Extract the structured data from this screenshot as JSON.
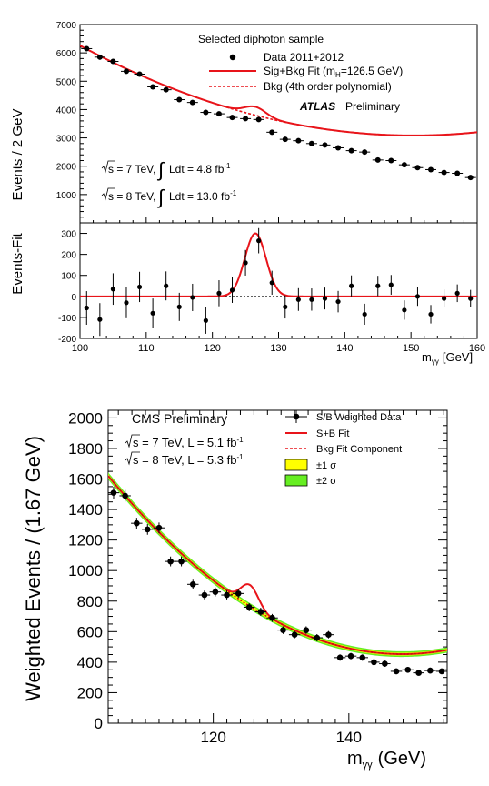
{
  "chart_data": [
    {
      "type": "scatter",
      "experiment": "ATLAS",
      "preliminary_label": "Preliminary",
      "title": "Selected diphoton sample",
      "ylabel": "Events / 2 GeV",
      "ylabel_ratio": "Events-Fit",
      "xlabel": "m",
      "xlabel_sub": "γγ",
      "xlabel_unit": "[GeV]",
      "xlim": [
        100,
        160
      ],
      "ylim": [
        0,
        7000
      ],
      "ratio_ylim": [
        -200,
        350
      ],
      "x_ticks": [
        100,
        110,
        120,
        130,
        140,
        150,
        160
      ],
      "y_ticks": [
        1000,
        2000,
        3000,
        4000,
        5000,
        6000,
        7000
      ],
      "ratio_y_ticks": [
        -200,
        -100,
        0,
        100,
        200,
        300
      ],
      "energy_labels": [
        {
          "prefix": "s = 7 TeV,",
          "integral": "Ldt = 4.8 fb",
          "sup": "-1"
        },
        {
          "prefix": "s = 8 TeV,",
          "integral": "Ldt = 13.0 fb",
          "sup": "-1"
        }
      ],
      "legend": [
        {
          "label": "Data 2011+2012",
          "style": "marker"
        },
        {
          "label": "Sig+Bkg Fit (m",
          "sub": "H",
          "tail": "=126.5 GeV)",
          "style": "solid"
        },
        {
          "label": "Bkg (4th order polynomial)",
          "style": "dashed"
        }
      ],
      "colors": {
        "fit": "#e8141a",
        "data": "#000000"
      },
      "data_x": [
        101,
        103,
        105,
        107,
        109,
        111,
        113,
        115,
        117,
        119,
        121,
        123,
        125,
        127,
        129,
        131,
        133,
        135,
        137,
        139,
        141,
        143,
        145,
        147,
        149,
        151,
        153,
        155,
        157,
        159
      ],
      "data_y": [
        6150,
        5850,
        5700,
        5350,
        5250,
        4800,
        4700,
        4350,
        4250,
        3900,
        3850,
        3720,
        3680,
        3650,
        3200,
        2950,
        2900,
        2800,
        2750,
        2650,
        2550,
        2500,
        2220,
        2200,
        2050,
        1950,
        1880,
        1780,
        1750,
        1600
      ],
      "data_err": [
        80,
        78,
        75,
        74,
        72,
        70,
        69,
        67,
        65,
        63,
        62,
        61,
        61,
        60,
        57,
        55,
        54,
        53,
        52,
        51,
        50,
        50,
        48,
        47,
        46,
        45,
        44,
        43,
        42,
        41
      ],
      "bkg_poly": [
        6260,
        -126,
        1.25
      ],
      "signal": {
        "mass": 126.5,
        "width": 1.6,
        "amplitude": 300
      },
      "residuals": [
        -55,
        -110,
        35,
        -30,
        45,
        -80,
        50,
        -50,
        -5,
        -115,
        15,
        30,
        160,
        265,
        65,
        -50,
        -15,
        -15,
        -10,
        -25,
        50,
        -85,
        50,
        55,
        -65,
        0,
        -85,
        -10,
        15,
        -10
      ],
      "residual_err": [
        80,
        78,
        75,
        74,
        72,
        70,
        69,
        67,
        65,
        63,
        62,
        61,
        61,
        60,
        57,
        55,
        54,
        53,
        52,
        51,
        50,
        50,
        48,
        47,
        46,
        45,
        44,
        43,
        42,
        41
      ]
    },
    {
      "type": "scatter",
      "experiment": "CMS Preliminary",
      "ylabel": "Weighted Events / (1.67 GeV)",
      "xlabel": "m",
      "xlabel_sub": "γγ",
      "xlabel_unit": "(GeV)",
      "xlim": [
        104.5,
        154.5
      ],
      "ylim": [
        0,
        2050
      ],
      "x_ticks": [
        120,
        140
      ],
      "y_ticks": [
        0,
        200,
        400,
        600,
        800,
        1000,
        1200,
        1400,
        1600,
        1800,
        2000
      ],
      "energy_labels": [
        {
          "prefix": "s = 7 TeV, L = 5.1 fb",
          "sup": "-1"
        },
        {
          "prefix": "s = 8 TeV, L = 5.3 fb",
          "sup": "-1"
        }
      ],
      "legend": [
        {
          "label": "S/B Weighted Data",
          "style": "marker"
        },
        {
          "label": "S+B Fit",
          "style": "solid"
        },
        {
          "label": "Bkg Fit Component",
          "style": "dashed"
        },
        {
          "label": "±1 σ",
          "style": "band1"
        },
        {
          "label": "±2 σ",
          "style": "band2"
        }
      ],
      "colors": {
        "fit": "#e8141a",
        "band1": "#ffff00",
        "band2": "#66ee22",
        "data": "#000000"
      },
      "data_x": [
        105.3,
        107,
        108.7,
        110.3,
        112,
        113.7,
        115.3,
        117,
        118.7,
        120.3,
        122,
        123.7,
        125.3,
        127,
        128.7,
        130.3,
        132,
        133.7,
        135.3,
        137,
        138.7,
        140.3,
        142,
        143.7,
        145.3,
        147,
        148.7,
        150.3,
        152,
        153.7
      ],
      "data_y": [
        1510,
        1490,
        1310,
        1270,
        1280,
        1060,
        1060,
        910,
        840,
        860,
        840,
        850,
        760,
        730,
        690,
        610,
        580,
        610,
        560,
        580,
        430,
        440,
        430,
        400,
        390,
        340,
        350,
        330,
        345,
        340
      ],
      "data_err": [
        40,
        38,
        36,
        35,
        35,
        32,
        32,
        30,
        29,
        29,
        29,
        29,
        27,
        27,
        26,
        25,
        24,
        25,
        24,
        24,
        21,
        21,
        21,
        20,
        20,
        19,
        19,
        18,
        19,
        18
      ],
      "bkg_poly": [
        1620,
        -53.8,
        0.62
      ],
      "signal": {
        "mass": 125.4,
        "width": 1.3,
        "amplitude": 140
      }
    }
  ]
}
